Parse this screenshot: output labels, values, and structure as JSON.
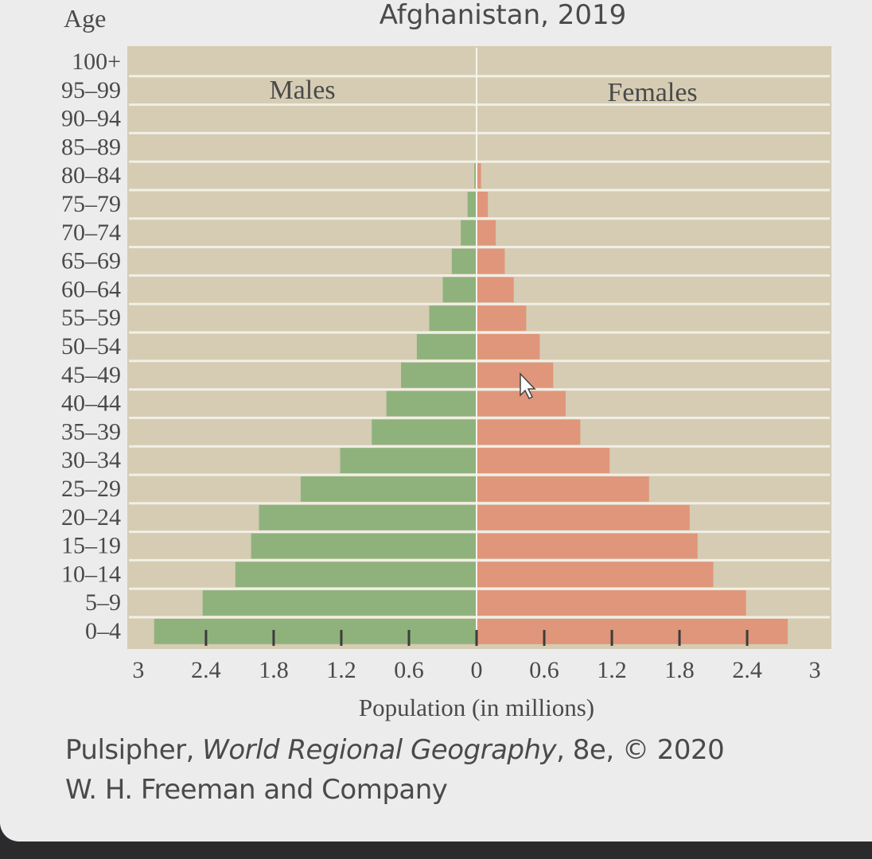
{
  "colors": {
    "plot_background": "#d5ccb3",
    "males": "#8fb27c",
    "females": "#e0967a",
    "gridline": "#f2efe6",
    "text": "#4a4a4a"
  },
  "caption": {
    "author": "Pulsipher, ",
    "book": "World Regional Geography",
    "edition": ", 8e, © 2020",
    "publisher": "W. H. Freeman and Company"
  },
  "cursor_icon": "arrow-pointer-icon",
  "chart_data": {
    "type": "bar",
    "orientation": "horizontal-diverging",
    "title": "Afghanistan, 2019",
    "ylabel": "Age",
    "xlabel": "Population (in millions)",
    "side_labels": {
      "left": "Males",
      "right": "Females"
    },
    "categories": [
      "100+",
      "95–99",
      "90–94",
      "85–89",
      "80–84",
      "75–79",
      "70–74",
      "65–69",
      "60–64",
      "55–59",
      "50–54",
      "45–49",
      "40–44",
      "35–39",
      "30–34",
      "25–29",
      "20–24",
      "15–19",
      "10–14",
      "5–9",
      "0–4"
    ],
    "series": [
      {
        "name": "Males",
        "side": "left",
        "values": [
          0,
          0,
          0,
          0,
          0.02,
          0.08,
          0.14,
          0.22,
          0.3,
          0.42,
          0.53,
          0.67,
          0.8,
          0.93,
          1.21,
          1.56,
          1.93,
          2.0,
          2.14,
          2.43,
          2.86
        ]
      },
      {
        "name": "Females",
        "side": "right",
        "values": [
          0,
          0,
          0,
          0,
          0.04,
          0.1,
          0.17,
          0.25,
          0.33,
          0.44,
          0.56,
          0.68,
          0.79,
          0.92,
          1.18,
          1.53,
          1.89,
          1.96,
          2.1,
          2.39,
          2.76
        ]
      }
    ],
    "xticks": [
      "3",
      "2.4",
      "1.8",
      "1.2",
      "0.6",
      "0",
      "0.6",
      "1.2",
      "1.8",
      "2.4",
      "3"
    ],
    "xlim": [
      -3,
      3
    ],
    "grid": true
  }
}
